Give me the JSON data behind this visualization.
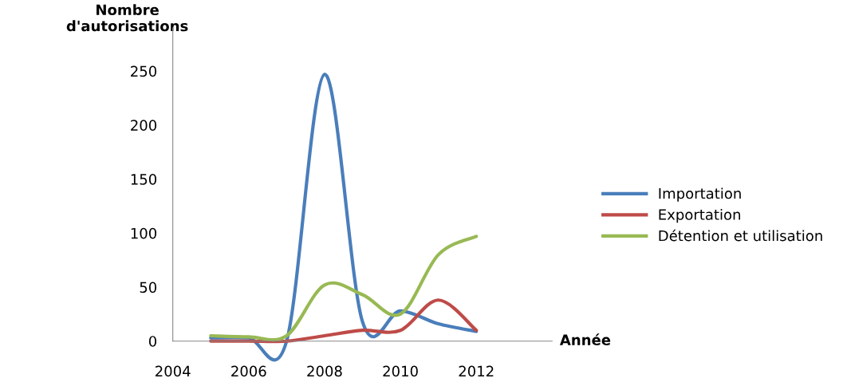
{
  "chart_data": {
    "type": "line",
    "xlabel": "Année",
    "ylabel": "Nombre\nd'autorisations",
    "x": [
      2005,
      2006,
      2007,
      2008,
      2009,
      2010,
      2011,
      2012
    ],
    "series": [
      {
        "name": "Importation",
        "color": "#4a7ebb",
        "values": [
          3,
          3,
          0,
          247,
          18,
          28,
          16,
          9
        ]
      },
      {
        "name": "Exportation",
        "color": "#be4b48",
        "values": [
          0,
          0,
          0,
          5,
          10,
          10,
          38,
          10
        ]
      },
      {
        "name": "Détention et utilisation",
        "color": "#98b954",
        "values": [
          5,
          4,
          5,
          52,
          43,
          25,
          80,
          97
        ]
      }
    ],
    "xlim": [
      2004,
      2014
    ],
    "ylim": [
      0,
      290
    ],
    "xticks": [
      2004,
      2006,
      2008,
      2010,
      2012
    ],
    "yticks": [
      0,
      50,
      100,
      150,
      200,
      250
    ],
    "grid": false,
    "legend": "right",
    "marker": "none",
    "line_style": "solid"
  }
}
